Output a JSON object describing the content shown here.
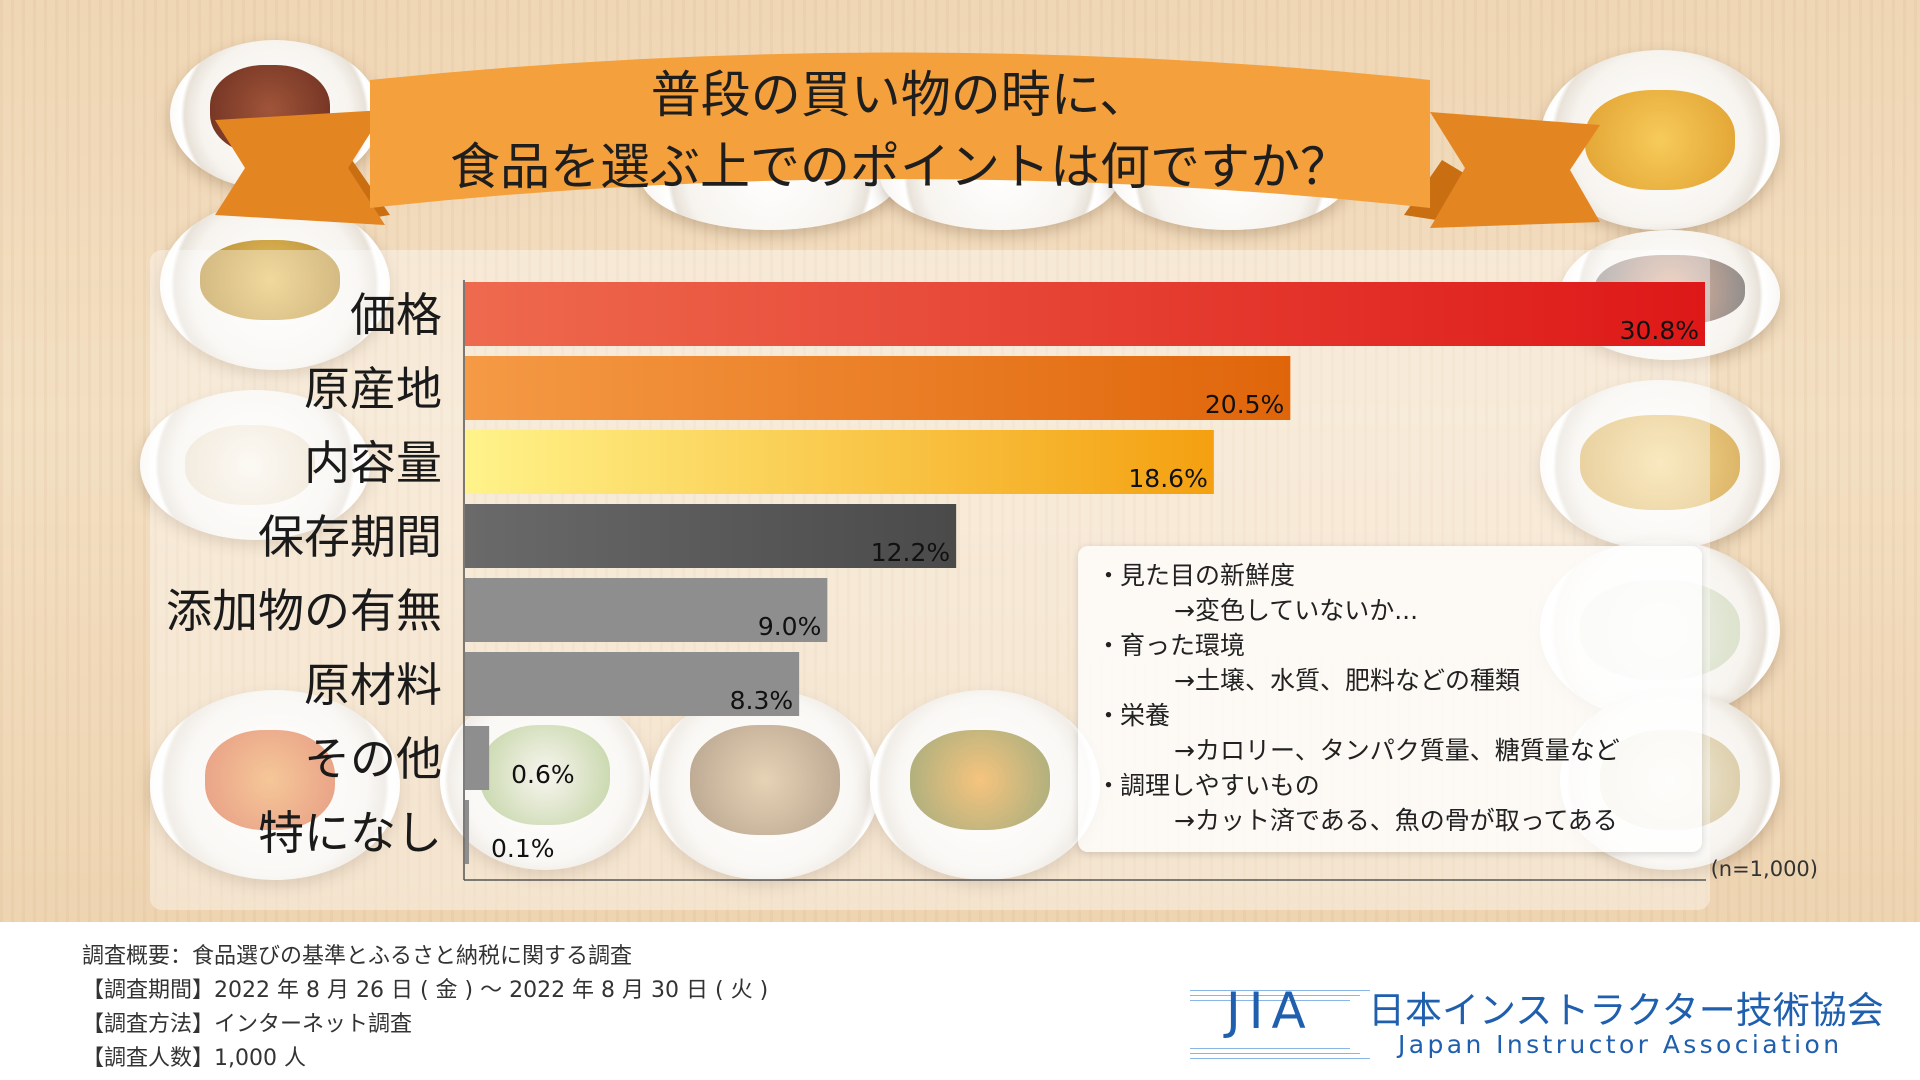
{
  "banner": {
    "line1": "普段の買い物の時に、",
    "line2": "食品を選ぶ上でのポイントは何ですか？"
  },
  "chart_data": {
    "type": "bar",
    "orientation": "horizontal",
    "title": "普段の買い物の時に、食品を選ぶ上でのポイントは何ですか？",
    "categories": [
      "価格",
      "原産地",
      "内容量",
      "保存期間",
      "添加物の有無",
      "原材料",
      "その他",
      "特になし"
    ],
    "values": [
      30.8,
      20.5,
      18.6,
      12.2,
      9.0,
      8.3,
      0.6,
      0.1
    ],
    "value_labels": [
      "30.8%",
      "20.5%",
      "18.6%",
      "12.2%",
      "9.0%",
      "8.3%",
      "0.6%",
      "0.1%"
    ],
    "unit": "%",
    "xlim": [
      0,
      30.8
    ],
    "grid": false,
    "legend": "none",
    "bar_colors": [
      [
        "#ee6a4e",
        "#de1818"
      ],
      [
        "#f59a45",
        "#e0650a"
      ],
      [
        "#fff38a",
        "#f4a010"
      ],
      [
        "#6a6a6a",
        "#4a4a4a"
      ],
      [
        "#8e8e8e",
        "#8e8e8e"
      ],
      [
        "#8e8e8e",
        "#8e8e8e"
      ],
      [
        "#8e8e8e",
        "#8e8e8e"
      ],
      [
        "#8e8e8e",
        "#8e8e8e"
      ]
    ],
    "sample_note": "(n=1,000)"
  },
  "notes": [
    {
      "title": "見た目の新鮮度",
      "detail": "→変色していないか..."
    },
    {
      "title": "育った環境",
      "detail": "→土壌、水質、肥料などの種類"
    },
    {
      "title": "栄養",
      "detail": "→カロリー、タンパク質量、糖質量など"
    },
    {
      "title": "調理しやすいもの",
      "detail": "→カット済である、魚の骨が取ってある"
    }
  ],
  "note_bullet": "・",
  "survey": {
    "overview": "調査概要：食品選びの基準とふるさと納税に関する調査",
    "period": "【調査期間】2022 年 8 月 26 日 ( 金 ) ～ 2022 年 8 月 30 日 ( 火 )",
    "method": "【調査方法】インターネット調査",
    "count": "【調査人数】1,000 人"
  },
  "logo": {
    "abbr": "JIA",
    "name_jp": "日本インストラクター技術協会",
    "name_en": "Japan Instructor Association"
  },
  "colors": {
    "banner": "#f4a03c",
    "banner_dark": "#c96f12",
    "logo_blue": "#1f5fae"
  }
}
